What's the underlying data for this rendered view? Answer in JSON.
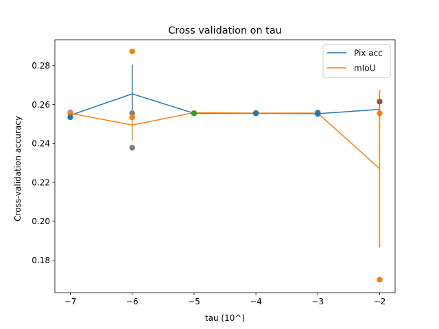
{
  "chart_data": {
    "type": "line",
    "title": "Cross validation on tau",
    "xlabel": "tau (10^)",
    "ylabel": "Cross-validation accuracy",
    "xlim": [
      -7.25,
      -1.75
    ],
    "ylim": [
      0.1633,
      0.2933
    ],
    "x_ticks": [
      -7,
      -6,
      -5,
      -4,
      -3,
      -2
    ],
    "x_tick_labels": [
      "−7",
      "−6",
      "−5",
      "−4",
      "−3",
      "−2"
    ],
    "y_ticks": [
      0.18,
      0.2,
      0.22,
      0.24,
      0.26,
      0.28
    ],
    "y_tick_labels": [
      "0.18",
      "0.20",
      "0.22",
      "0.24",
      "0.26",
      "0.28"
    ],
    "legend_position": "top-right",
    "grid": false,
    "series": [
      {
        "name": "Pix acc",
        "color": "#1f77b4",
        "x": [
          -7,
          -6,
          -5,
          -4,
          -3,
          -2
        ],
        "y": [
          0.2545,
          0.2655,
          0.2555,
          0.2555,
          0.2553,
          0.2575
        ],
        "err": [
          0.0005,
          0.015,
          0.0002,
          0.0002,
          0.0002,
          0.004
        ]
      },
      {
        "name": "mIoU",
        "color": "#ff7f0e",
        "x": [
          -7,
          -6,
          -5,
          -4,
          -3,
          -2
        ],
        "y": [
          0.2555,
          0.2495,
          0.2558,
          0.2556,
          0.2556,
          0.227
        ],
        "err": [
          0.0005,
          0.008,
          0.0002,
          0.0002,
          0.0002,
          0.0405
        ]
      }
    ],
    "scatter_points": [
      {
        "x": -7,
        "y": 0.256,
        "color": "#e377c2"
      },
      {
        "x": -7,
        "y": 0.2555,
        "color": "#ff7f0e"
      },
      {
        "x": -7,
        "y": 0.2535,
        "color": "#1f77b4"
      },
      {
        "x": -6,
        "y": 0.2873,
        "color": "#ff7f0e"
      },
      {
        "x": -6,
        "y": 0.2555,
        "color": "#7f7f7f"
      },
      {
        "x": -6,
        "y": 0.2535,
        "color": "#ff7f0e"
      },
      {
        "x": -6,
        "y": 0.2378,
        "color": "#7f7f7f"
      },
      {
        "x": -5,
        "y": 0.2556,
        "color": "#bcbd22"
      },
      {
        "x": -5,
        "y": 0.2555,
        "color": "#2ca02c"
      },
      {
        "x": -4,
        "y": 0.2556,
        "color": "#17becf"
      },
      {
        "x": -4,
        "y": 0.2555,
        "color": "#1f77b4"
      },
      {
        "x": -3,
        "y": 0.2558,
        "color": "#1f77b4"
      },
      {
        "x": -3,
        "y": 0.2552,
        "color": "#1f77b4"
      },
      {
        "x": -2,
        "y": 0.2615,
        "color": "#8c564b"
      },
      {
        "x": -2,
        "y": 0.2555,
        "color": "#ff7f0e"
      },
      {
        "x": -2,
        "y": 0.17,
        "color": "#ff7f0e"
      }
    ]
  }
}
